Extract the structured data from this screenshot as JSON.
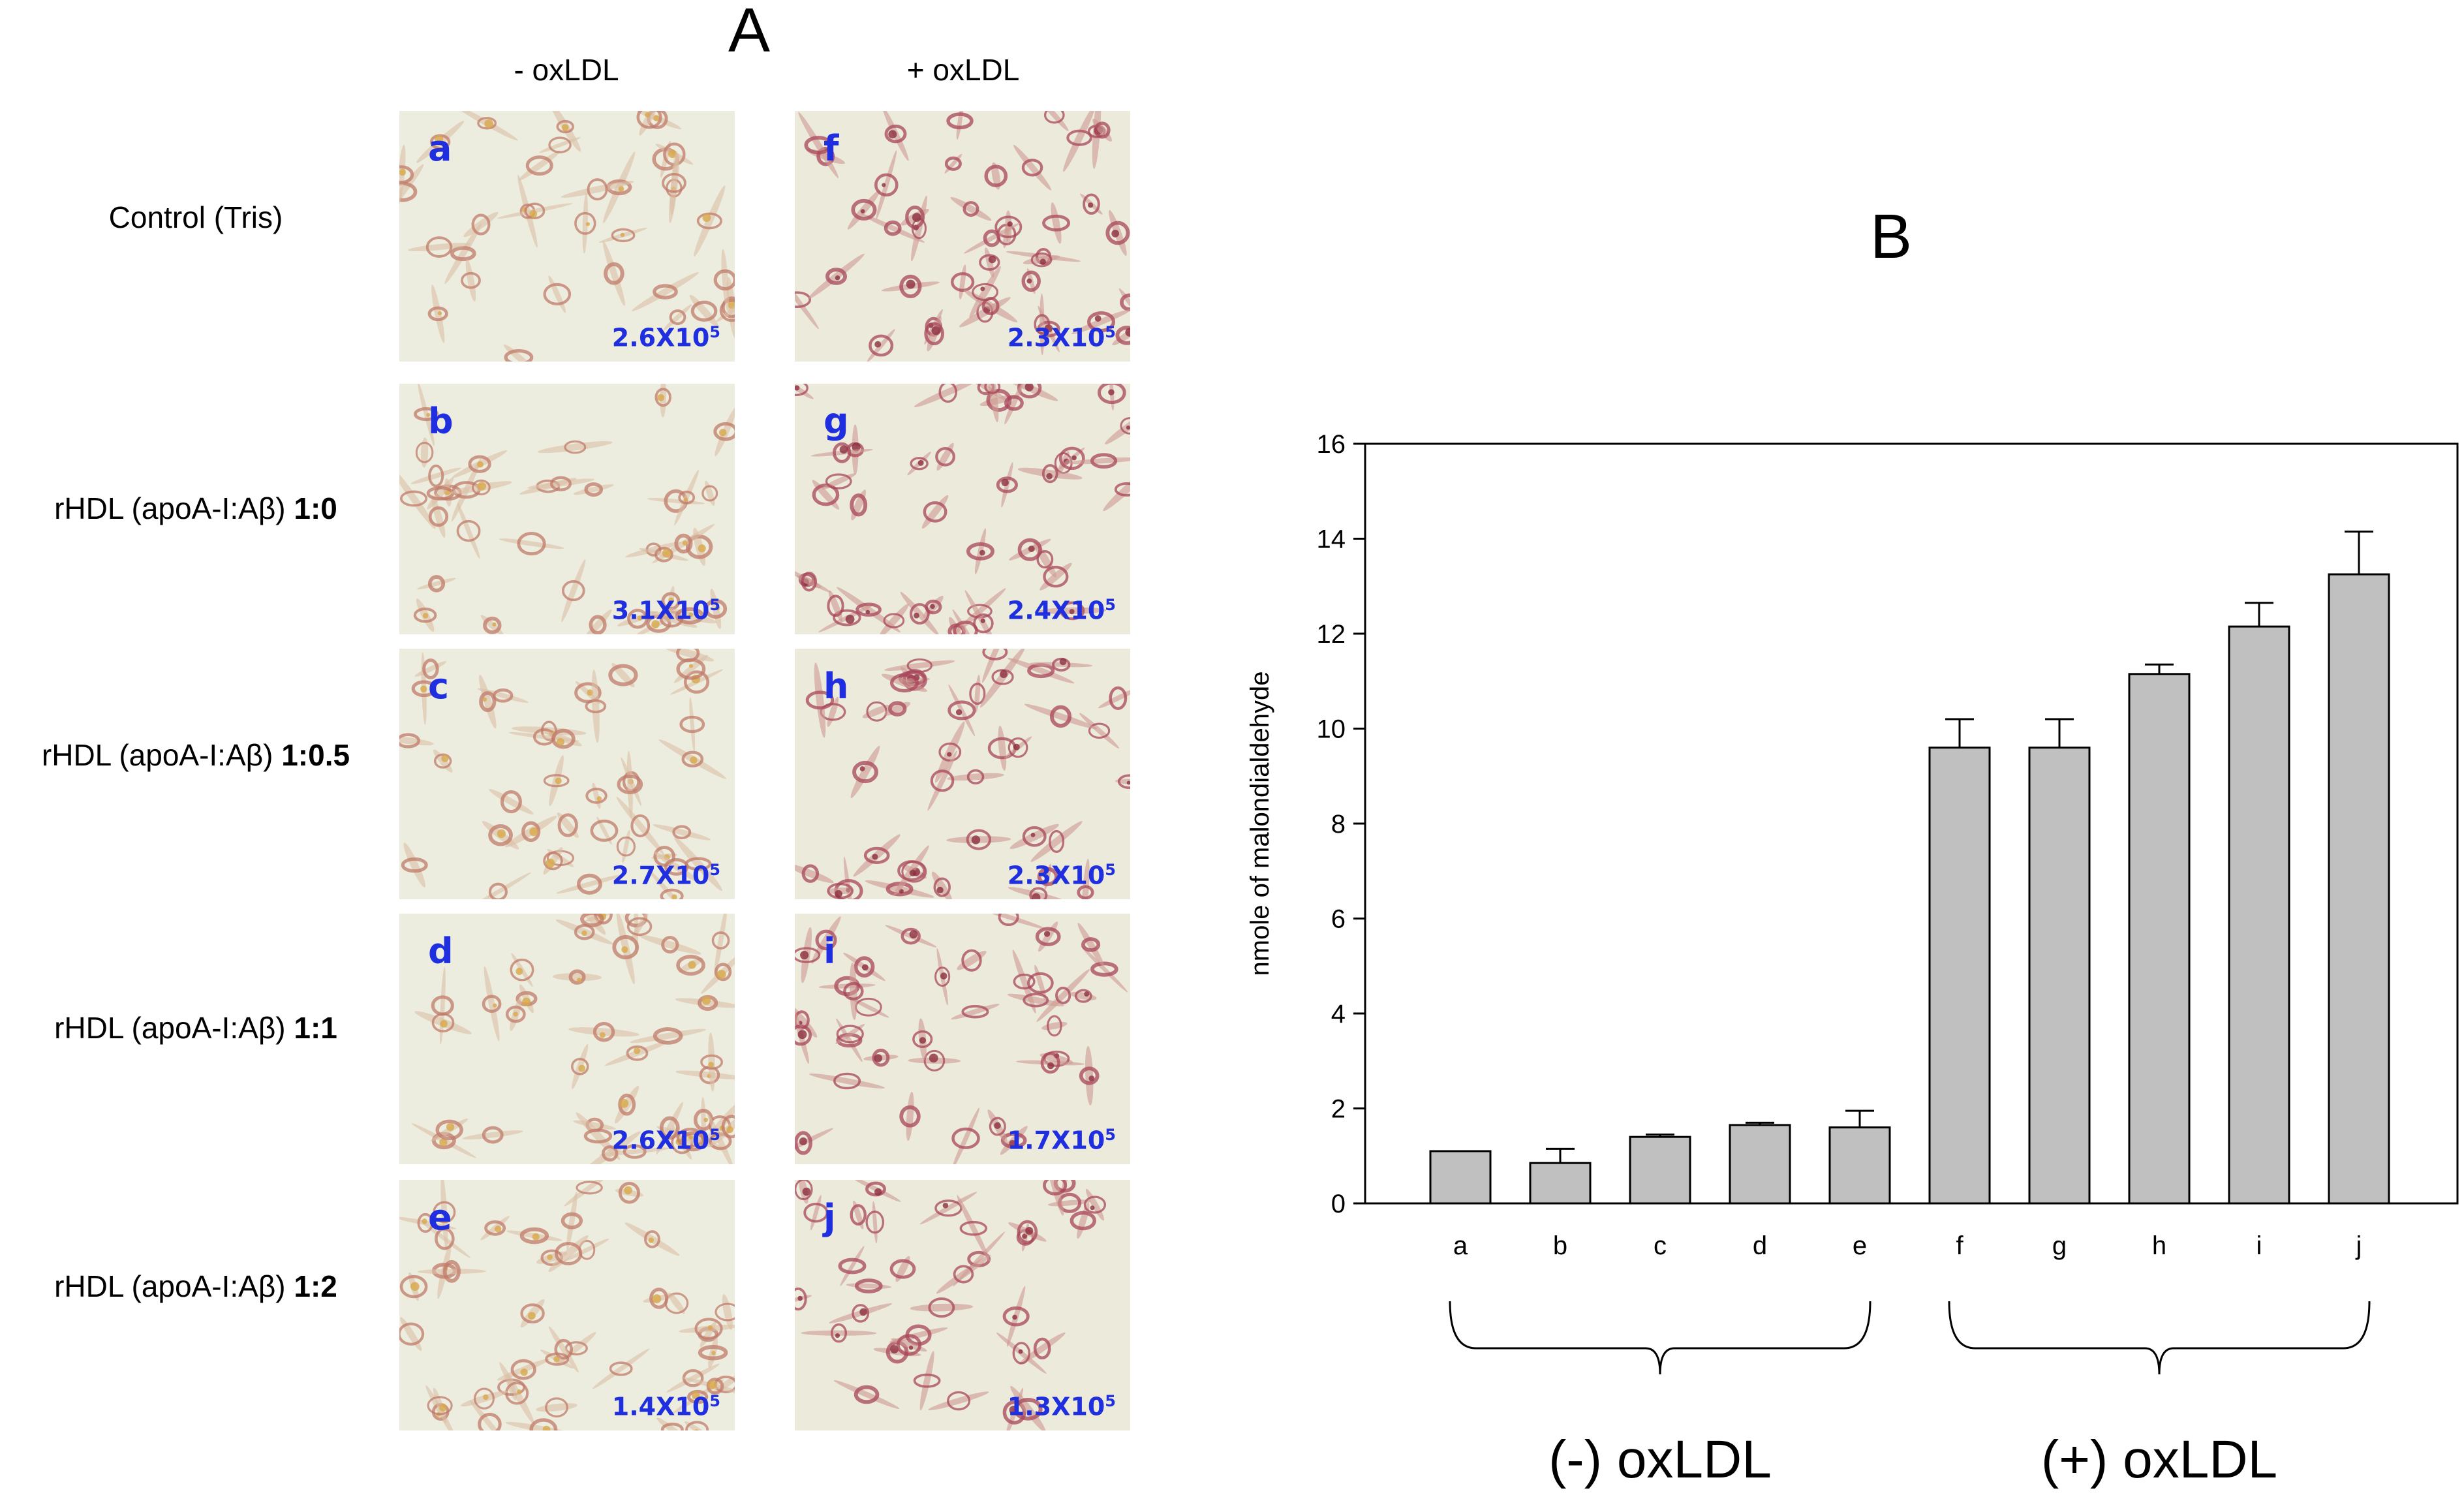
{
  "panel_a": {
    "letter": "A",
    "col_headers": [
      "- oxLDL",
      "+ oxLDL"
    ],
    "rows": [
      {
        "label_plain": "Control (Tris)",
        "label_bold": "",
        "images": [
          {
            "letter": "a",
            "count_base": "2.6X10",
            "count_exp": "5"
          },
          {
            "letter": "f",
            "count_base": "2.3X10",
            "count_exp": "5"
          }
        ]
      },
      {
        "label_plain": "rHDL (apoA-I:Aβ) ",
        "label_bold": "1:0",
        "images": [
          {
            "letter": "b",
            "count_base": "3.1X10",
            "count_exp": "5"
          },
          {
            "letter": "g",
            "count_base": "2.4X10",
            "count_exp": "5"
          }
        ]
      },
      {
        "label_plain": "rHDL (apoA-I:Aβ) ",
        "label_bold": "1:0.5",
        "images": [
          {
            "letter": "c",
            "count_base": "2.7X10",
            "count_exp": "5"
          },
          {
            "letter": "h",
            "count_base": "2.3X10",
            "count_exp": "5"
          }
        ]
      },
      {
        "label_plain": "rHDL (apoA-I:Aβ) ",
        "label_bold": "1:1",
        "images": [
          {
            "letter": "d",
            "count_base": "2.6X10",
            "count_exp": "5"
          },
          {
            "letter": "i",
            "count_base": "1.7X10",
            "count_exp": "5"
          }
        ]
      },
      {
        "label_plain": "rHDL (apoA-I:Aβ) ",
        "label_bold": "1:2",
        "images": [
          {
            "letter": "e",
            "count_base": "1.4X10",
            "count_exp": "5"
          },
          {
            "letter": "j",
            "count_base": "1.3X10",
            "count_exp": "5"
          }
        ]
      }
    ]
  },
  "panel_b": {
    "letter": "B"
  },
  "chart_data": {
    "type": "bar",
    "title": "",
    "xlabel": "",
    "ylabel": "nmole of malondialdehyde",
    "categories": [
      "a",
      "b",
      "c",
      "d",
      "e",
      "f",
      "g",
      "h",
      "i",
      "j"
    ],
    "values": [
      1.1,
      0.85,
      1.4,
      1.65,
      1.6,
      9.6,
      9.6,
      11.15,
      12.15,
      13.25
    ],
    "errors": [
      0.0,
      0.3,
      0.05,
      0.05,
      0.35,
      0.6,
      0.6,
      0.2,
      0.5,
      0.9
    ],
    "ylim": [
      0,
      16
    ],
    "yticks": [
      0,
      2,
      4,
      6,
      8,
      10,
      12,
      14,
      16
    ],
    "grid": false,
    "bar_color": "#c0c0c0",
    "groups": [
      {
        "label": "(-) oxLDL",
        "from": 0,
        "to": 4
      },
      {
        "label": "(+) oxLDL",
        "from": 5,
        "to": 9
      }
    ]
  }
}
